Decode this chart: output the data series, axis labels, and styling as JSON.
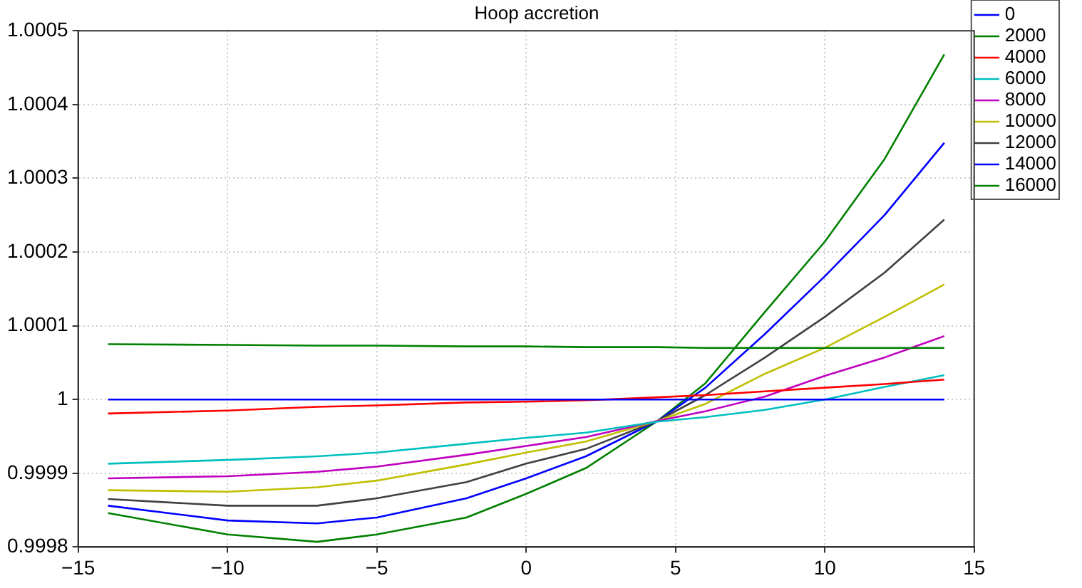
{
  "chart_data": {
    "type": "line",
    "title": "Hoop accretion",
    "x": [
      -14,
      -10,
      -7,
      -5,
      -2,
      0,
      2,
      4.4,
      6,
      8,
      10,
      12,
      14
    ],
    "xlim": [
      -15,
      15
    ],
    "xticks": [
      {
        "value": -15,
        "label": "−15"
      },
      {
        "value": -10,
        "label": "−10"
      },
      {
        "value": -5,
        "label": "−5"
      },
      0,
      5,
      10,
      15
    ],
    "ylim": [
      0.9998,
      1.0005
    ],
    "yticks": [
      0.9998,
      0.9999,
      1,
      1.0001,
      1.0002,
      1.0003,
      1.0004,
      1.0005
    ],
    "grid": true,
    "legend": "top right",
    "line_style": "solid",
    "marker": "none",
    "series": [
      {
        "name": "0",
        "color": "#0000ff",
        "values": [
          1,
          1,
          1,
          1,
          1,
          1,
          1,
          1,
          1,
          1,
          1,
          1,
          1
        ]
      },
      {
        "name": "2000",
        "color": "#008000",
        "values": [
          1.000075,
          1.000074,
          1.000073,
          1.000073,
          1.000072,
          1.000072,
          1.000071,
          1.000071,
          1.00007,
          1.00007,
          1.00007,
          1.00007,
          1.00007
        ]
      },
      {
        "name": "4000",
        "color": "#ff0000",
        "values": [
          0.999981,
          0.999985,
          0.99999,
          0.999992,
          0.999996,
          0.999997,
          0.999999,
          1.000003,
          1.000006,
          1.000011,
          1.000016,
          1.000021,
          1.000027
        ]
      },
      {
        "name": "6000",
        "color": "#00bfbf",
        "values": [
          0.999913,
          0.999918,
          0.999923,
          0.999928,
          0.99994,
          0.999948,
          0.999955,
          0.99997,
          0.999976,
          0.999986,
          1,
          1.000017,
          1.000033
        ]
      },
      {
        "name": "8000",
        "color": "#bf00bf",
        "values": [
          0.999893,
          0.999896,
          0.999902,
          0.999909,
          0.999925,
          0.999937,
          0.999949,
          0.999971,
          0.999984,
          1.000004,
          1.000032,
          1.000057,
          1.000086
        ]
      },
      {
        "name": "10000",
        "color": "#bfbf00",
        "values": [
          0.999877,
          0.999875,
          0.999881,
          0.99989,
          0.999912,
          0.999928,
          0.999943,
          0.999971,
          0.999994,
          1.000035,
          1.00007,
          1.000112,
          1.000156
        ]
      },
      {
        "name": "12000",
        "color": "#404040",
        "values": [
          0.999865,
          0.999856,
          0.999856,
          0.999866,
          0.999888,
          0.999913,
          0.999933,
          0.999971,
          1.000006,
          1.000057,
          1.000112,
          1.000172,
          1.000244
        ]
      },
      {
        "name": "14000",
        "color": "#0000ff",
        "values": [
          0.999856,
          0.999836,
          0.999832,
          0.99984,
          0.999866,
          0.999893,
          0.999923,
          0.999971,
          1.000016,
          1.000089,
          1.000167,
          1.00025,
          1.000348
        ]
      },
      {
        "name": "16000",
        "color": "#008000",
        "values": [
          0.999846,
          0.999817,
          0.999807,
          0.999817,
          0.99984,
          0.999872,
          0.999907,
          0.999971,
          1.000022,
          1.000119,
          1.000214,
          1.000326,
          1.000468
        ]
      }
    ]
  }
}
